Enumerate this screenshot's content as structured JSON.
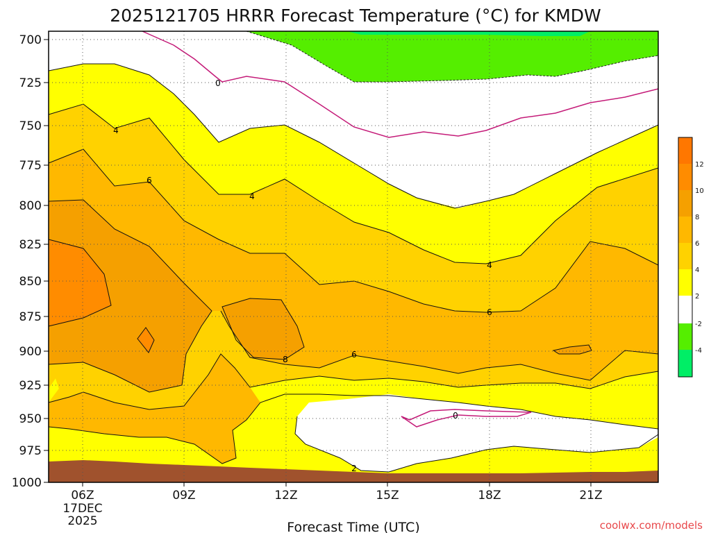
{
  "chart_data": {
    "type": "contour",
    "title": "2025121705 HRRR Forecast Temperature (°C) for KMDW",
    "xlabel": "Forecast Time (UTC)",
    "ylabel": "",
    "credit": "coolwx.com/models",
    "x_ticks": [
      "06Z",
      "09Z",
      "12Z",
      "15Z",
      "18Z",
      "21Z"
    ],
    "x_date_label": [
      "17DEC",
      "2025"
    ],
    "y_ticks": [
      "700",
      "725",
      "750",
      "775",
      "800",
      "825",
      "850",
      "875",
      "900",
      "925",
      "950",
      "975",
      "1000"
    ],
    "ylim": [
      700,
      1000
    ],
    "y_inverted": true,
    "grid": true,
    "colorbar": {
      "labels": [
        "12",
        "10",
        "8",
        "6",
        "4",
        "2",
        "-2",
        "-4"
      ],
      "bins": [
        {
          "range": [
            12,
            14
          ],
          "color": "#ff7700"
        },
        {
          "range": [
            10,
            12
          ],
          "color": "#ff8c00"
        },
        {
          "range": [
            8,
            10
          ],
          "color": "#f5a000"
        },
        {
          "range": [
            6,
            8
          ],
          "color": "#ffb800"
        },
        {
          "range": [
            4,
            6
          ],
          "color": "#ffd200"
        },
        {
          "range": [
            2,
            4
          ],
          "color": "#ffff00"
        },
        {
          "range": [
            -2,
            2
          ],
          "color": "#ffffff"
        },
        {
          "range": [
            -4,
            -2
          ],
          "color": "#55ee00"
        },
        {
          "range": [
            -6,
            -4
          ],
          "color": "#00ee66"
        }
      ]
    },
    "contour_labels": [
      {
        "text": "0",
        "time": "10Z",
        "pressure": 725
      },
      {
        "text": "4",
        "time": "07Z",
        "pressure": 752
      },
      {
        "text": "6",
        "time": "08Z",
        "pressure": 791
      },
      {
        "text": "4",
        "time": "11Z",
        "pressure": 798
      },
      {
        "text": "4",
        "time": "18Z",
        "pressure": 844
      },
      {
        "text": "6",
        "time": "18Z",
        "pressure": 874
      },
      {
        "text": "8",
        "time": "12Z",
        "pressure": 905
      },
      {
        "text": "6",
        "time": "14Z",
        "pressure": 902
      },
      {
        "text": "0",
        "time": "17Z",
        "pressure": 949
      },
      {
        "text": "2",
        "time": "14Z",
        "pressure": 992
      }
    ],
    "ground_color": "#a0522d"
  }
}
